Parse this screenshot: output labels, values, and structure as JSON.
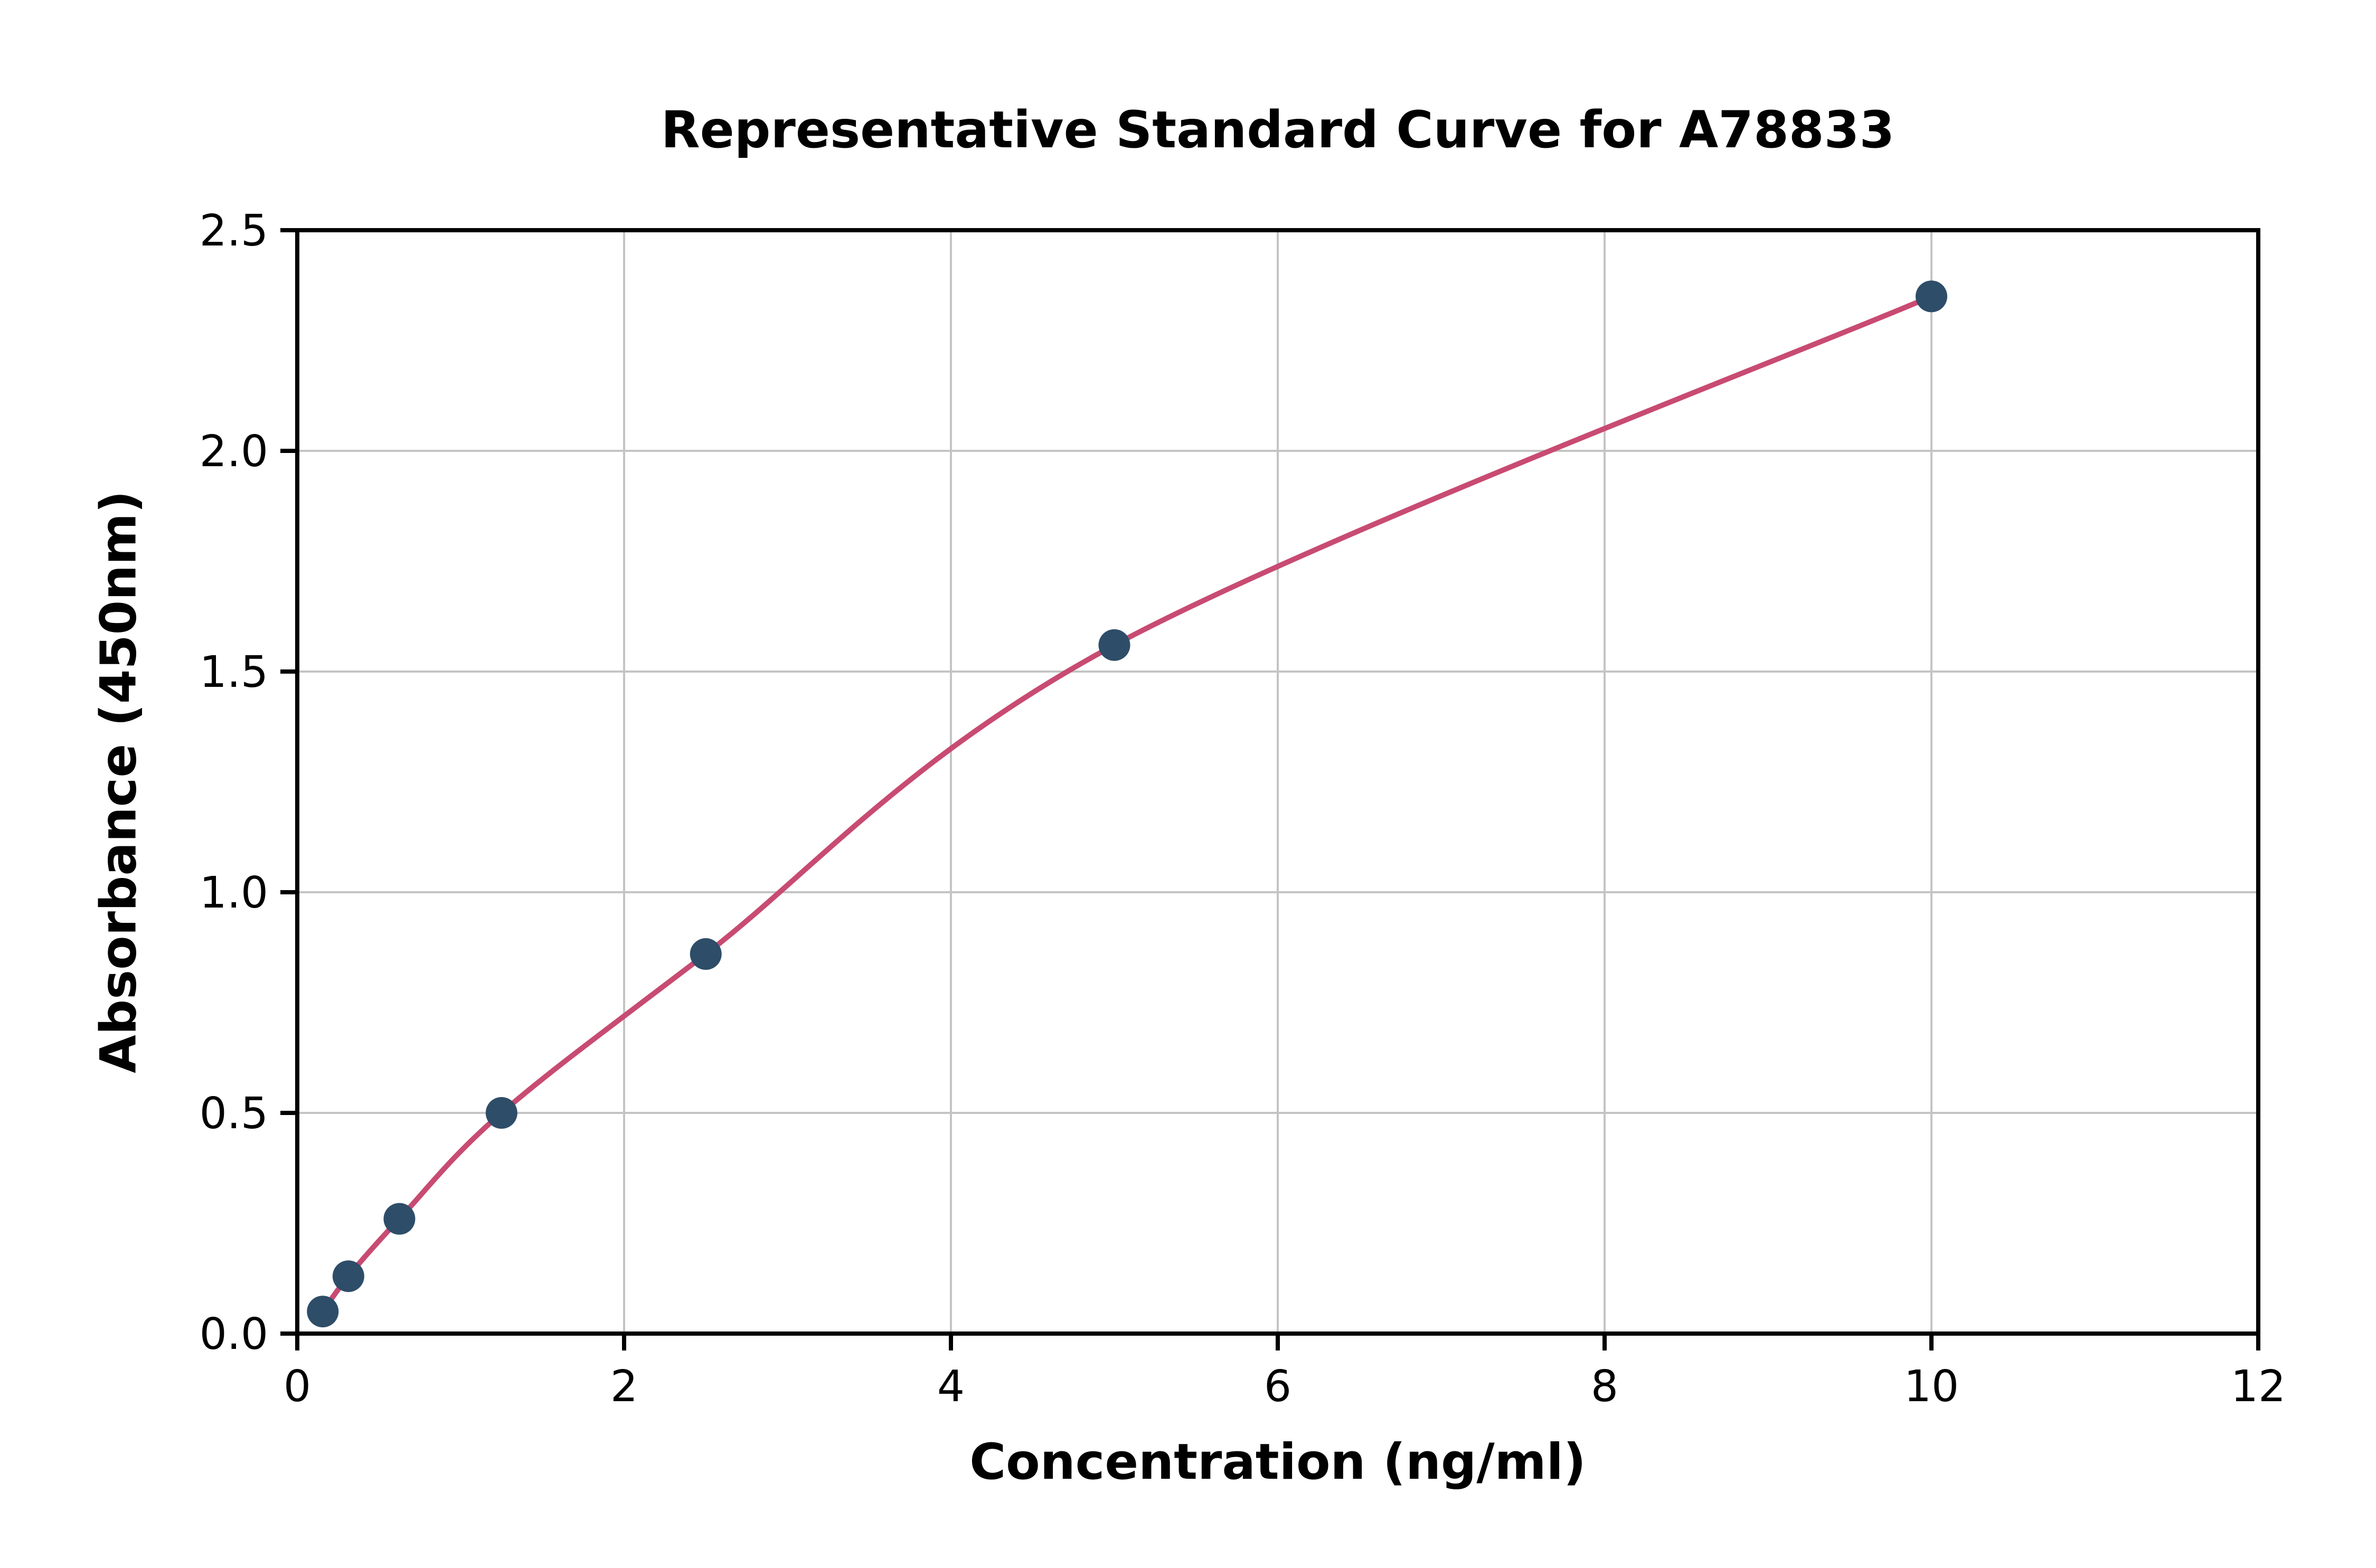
{
  "chart_data": {
    "type": "scatter",
    "title": "Representative Standard Curve for A78833",
    "xlabel": "Concentration (ng/ml)",
    "ylabel": "Absorbance (450nm)",
    "xlim": [
      0,
      12
    ],
    "ylim": [
      0,
      2.5
    ],
    "xticks": [
      0,
      2,
      4,
      6,
      8,
      10,
      12
    ],
    "xticklabels": [
      "0",
      "2",
      "4",
      "6",
      "8",
      "10",
      "12"
    ],
    "yticks": [
      0,
      0.5,
      1.0,
      1.5,
      2.0,
      2.5
    ],
    "yticklabels": [
      "0.0",
      "0.5",
      "1.0",
      "1.5",
      "2.0",
      "2.5"
    ],
    "grid": true,
    "legend": "none",
    "points": [
      {
        "x": 0.156,
        "y": 0.05
      },
      {
        "x": 0.313,
        "y": 0.13
      },
      {
        "x": 0.625,
        "y": 0.26
      },
      {
        "x": 1.25,
        "y": 0.5
      },
      {
        "x": 2.5,
        "y": 0.86
      },
      {
        "x": 5.0,
        "y": 1.56
      },
      {
        "x": 10.0,
        "y": 2.35
      }
    ],
    "curve": "smooth fit through points",
    "colors": {
      "marker": "#2e4d68",
      "curve": "#c84b72",
      "grid": "#c4c4c4",
      "axis": "#000000",
      "background": "#ffffff"
    }
  }
}
